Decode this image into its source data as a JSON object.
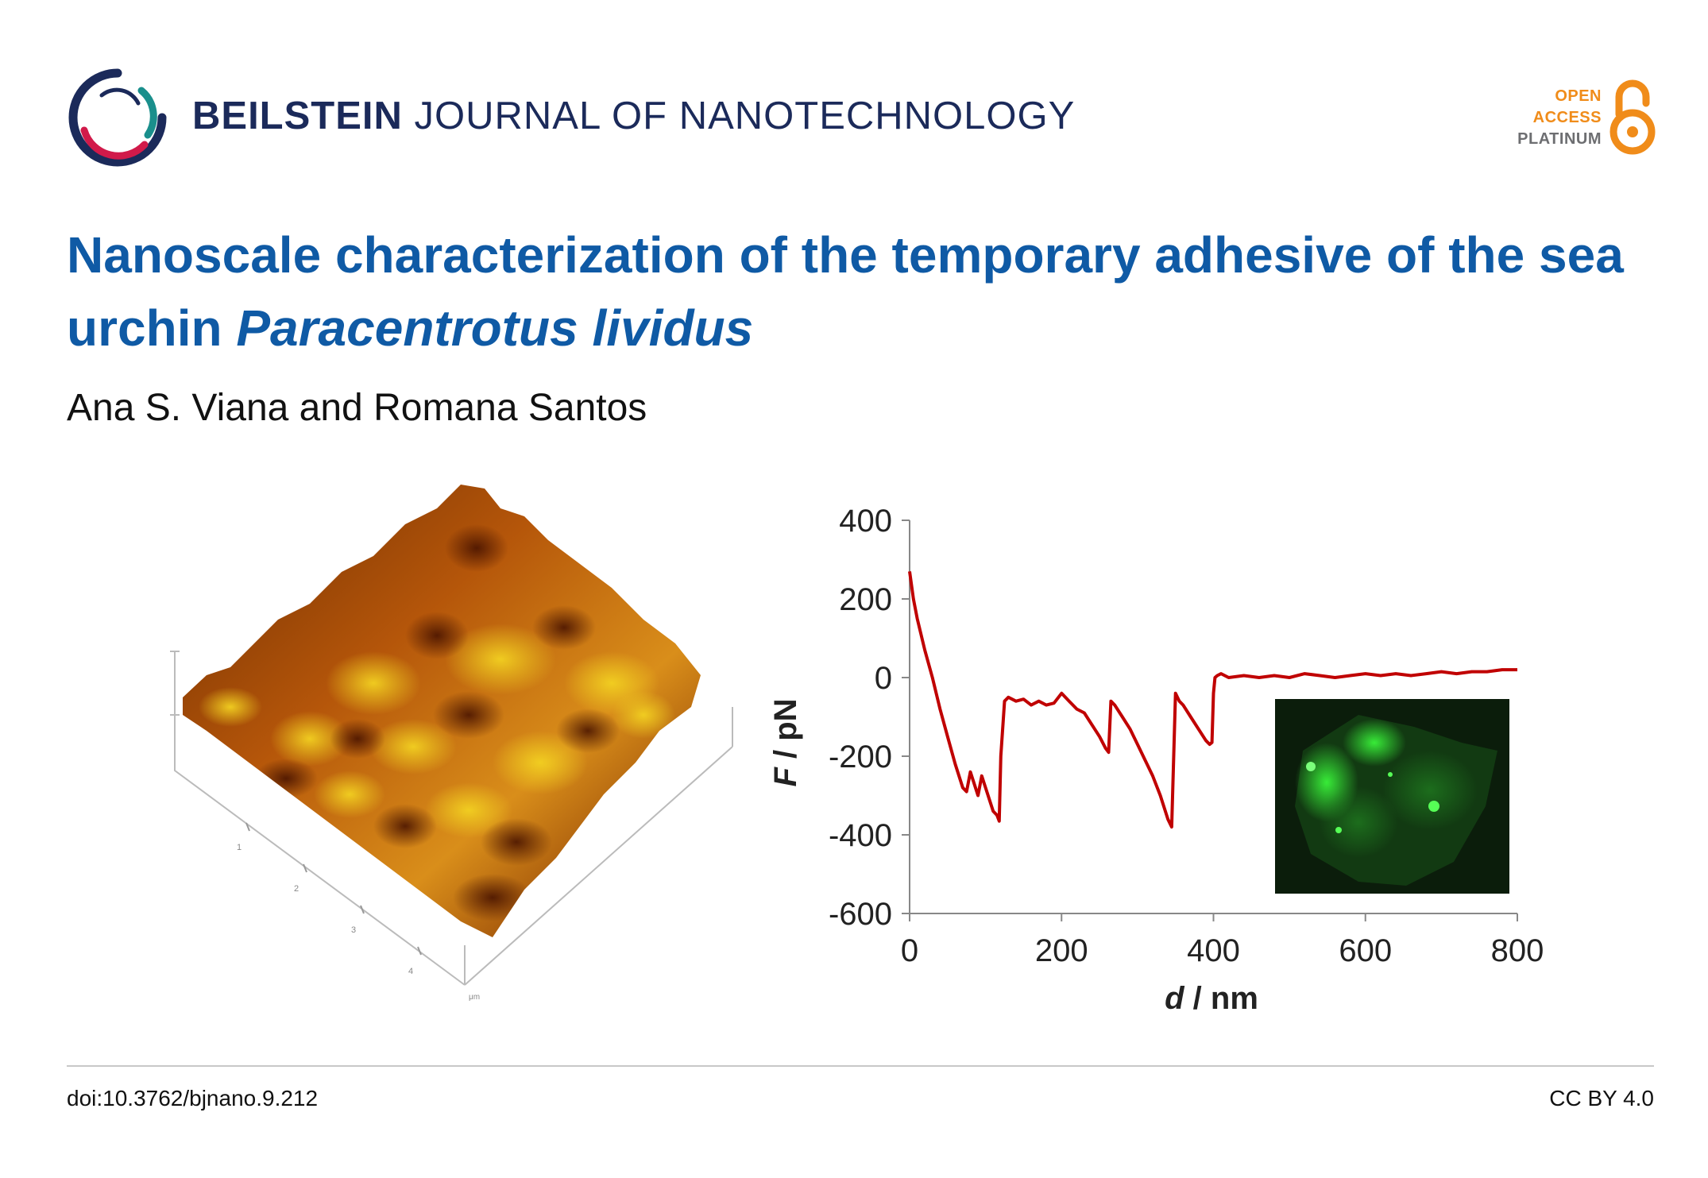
{
  "header": {
    "journal_bold": "BEILSTEIN",
    "journal_rest": " JOURNAL OF NANOTECHNOLOGY",
    "open_access": [
      "OPEN",
      "ACCESS",
      "PLATINUM"
    ]
  },
  "article": {
    "title_plain": "Nanoscale characterization of the temporary adhesive of the sea urchin ",
    "title_italic": "Paracentrotus lividus",
    "authors": "Ana S. Viana and Romana Santos"
  },
  "afm_image": {
    "axis_ticks": [
      "1",
      "2",
      "3",
      "4"
    ],
    "unit": "μm"
  },
  "chart_data": {
    "type": "line",
    "xlabel_symbol": "d",
    "xlabel_unit": " / nm",
    "ylabel_symbol": "F",
    "ylabel_unit": " / pN",
    "xlim": [
      0,
      800
    ],
    "ylim": [
      -600,
      400
    ],
    "x_ticks": [
      "0",
      "200",
      "400",
      "600",
      "800"
    ],
    "y_ticks": [
      "400",
      "200",
      "0",
      "-200",
      "-400",
      "-600"
    ],
    "grid": false,
    "line_color": "#c00000",
    "series": [
      {
        "x": [
          0,
          5,
          10,
          20,
          30,
          40,
          50,
          60,
          70,
          75,
          80,
          90,
          95,
          100,
          105,
          110,
          115,
          118,
          120,
          125,
          130,
          140,
          150,
          160,
          170,
          180,
          190,
          200,
          210,
          220,
          230,
          240,
          250,
          258,
          262,
          265,
          270,
          280,
          290,
          300,
          310,
          320,
          330,
          340,
          345,
          350,
          355,
          360,
          370,
          380,
          390,
          395,
          398,
          400,
          402,
          405,
          410,
          420,
          440,
          460,
          480,
          500,
          520,
          540,
          560,
          580,
          600,
          620,
          640,
          660,
          680,
          700,
          720,
          740,
          760,
          780,
          800
        ],
        "y": [
          270,
          200,
          150,
          70,
          0,
          -80,
          -150,
          -220,
          -280,
          -290,
          -240,
          -300,
          -250,
          -280,
          -310,
          -340,
          -350,
          -365,
          -200,
          -60,
          -50,
          -60,
          -55,
          -70,
          -60,
          -70,
          -65,
          -40,
          -60,
          -80,
          -90,
          -120,
          -150,
          -180,
          -190,
          -60,
          -70,
          -100,
          -130,
          -170,
          -210,
          -250,
          -300,
          -360,
          -380,
          -40,
          -60,
          -70,
          -100,
          -130,
          -160,
          -170,
          -165,
          -40,
          0,
          5,
          10,
          0,
          5,
          0,
          5,
          0,
          10,
          5,
          0,
          5,
          10,
          5,
          10,
          5,
          10,
          15,
          10,
          15,
          15,
          20,
          20
        ]
      }
    ],
    "inset": "fluorescence micrograph"
  },
  "footer": {
    "doi": "doi:10.3762/bjnano.9.212",
    "license": "CC BY 4.0"
  }
}
